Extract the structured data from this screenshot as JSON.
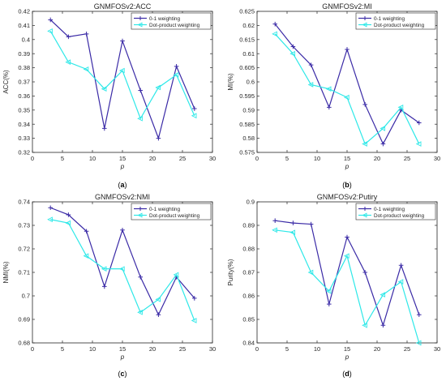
{
  "colors": {
    "series1": "#3a2aa6",
    "series2": "#2ee8e8",
    "axis": "#262626",
    "text": "#262626"
  },
  "chart_data": [
    {
      "type": "line",
      "panel_label": "(a)",
      "title": "GNMFOSv2:ACC",
      "xlabel": "p",
      "ylabel": "ACC(%)",
      "xlim": [
        0,
        30
      ],
      "ylim": [
        0.32,
        0.42
      ],
      "xticks": [
        0,
        5,
        10,
        15,
        20,
        25,
        30
      ],
      "xtick_labels": [
        "0",
        "5",
        "10",
        "15",
        "20",
        "25",
        "30"
      ],
      "yticks": [
        0.32,
        0.33,
        0.34,
        0.35,
        0.36,
        0.37,
        0.38,
        0.39,
        0.4,
        0.41,
        0.42
      ],
      "ytick_labels": [
        "0.32",
        "0.33",
        "0.34",
        "0.35",
        "0.36",
        "0.37",
        "0.38",
        "0.39",
        "0.4",
        "0.41",
        "0.42"
      ],
      "legend": "top-right",
      "grid": false,
      "x": [
        3,
        6,
        9,
        12,
        15,
        18,
        21,
        24,
        27
      ],
      "series": [
        {
          "name": "0-1 weighting",
          "marker": "plus",
          "values": [
            0.414,
            0.402,
            0.404,
            0.337,
            0.399,
            0.364,
            0.33,
            0.381,
            0.351
          ]
        },
        {
          "name": "Dot-product weighting",
          "marker": "triangle",
          "values": [
            0.406,
            0.384,
            0.379,
            0.365,
            0.378,
            0.344,
            0.366,
            0.375,
            0.346
          ]
        }
      ]
    },
    {
      "type": "line",
      "panel_label": "(b)",
      "title": "GNMFOSv2:MI",
      "xlabel": "p",
      "ylabel": "MI(%)",
      "xlim": [
        0,
        30
      ],
      "ylim": [
        0.575,
        0.625
      ],
      "xticks": [
        0,
        5,
        10,
        15,
        20,
        25,
        30
      ],
      "xtick_labels": [
        "0",
        "5",
        "10",
        "15",
        "20",
        "25",
        "30"
      ],
      "yticks": [
        0.575,
        0.58,
        0.585,
        0.59,
        0.595,
        0.6,
        0.605,
        0.61,
        0.615,
        0.62,
        0.625
      ],
      "ytick_labels": [
        "0.575",
        "0.58",
        "0.585",
        "0.59",
        "0.595",
        "0.6",
        "0.605",
        "0.61",
        "0.615",
        "0.62",
        "0.625"
      ],
      "legend": "top-right",
      "grid": false,
      "x": [
        3,
        6,
        9,
        12,
        15,
        18,
        21,
        24,
        27
      ],
      "series": [
        {
          "name": "0-1 weighting",
          "marker": "plus",
          "values": [
            0.6205,
            0.6125,
            0.606,
            0.591,
            0.6115,
            0.592,
            0.578,
            0.59,
            0.5855
          ]
        },
        {
          "name": "Dot-product weighting",
          "marker": "triangle",
          "values": [
            0.617,
            0.61,
            0.599,
            0.5975,
            0.5945,
            0.578,
            0.5835,
            0.591,
            0.578
          ]
        }
      ]
    },
    {
      "type": "line",
      "panel_label": "(c)",
      "title": "GNMFOSv2:NMI",
      "xlabel": "p",
      "ylabel": "NMI(%)",
      "xlim": [
        0,
        30
      ],
      "ylim": [
        0.68,
        0.74
      ],
      "xticks": [
        0,
        5,
        10,
        15,
        20,
        25,
        30
      ],
      "xtick_labels": [
        "0",
        "5",
        "10",
        "15",
        "20",
        "25",
        "30"
      ],
      "yticks": [
        0.68,
        0.69,
        0.7,
        0.71,
        0.72,
        0.73,
        0.74
      ],
      "ytick_labels": [
        "0.68",
        "0.69",
        "0.7",
        "0.71",
        "0.72",
        "0.73",
        "0.74"
      ],
      "legend": "top-right",
      "grid": false,
      "x": [
        3,
        6,
        9,
        12,
        15,
        18,
        21,
        24,
        27
      ],
      "series": [
        {
          "name": "0-1 weighting",
          "marker": "plus",
          "values": [
            0.7375,
            0.7345,
            0.7275,
            0.704,
            0.728,
            0.708,
            0.692,
            0.708,
            0.699
          ]
        },
        {
          "name": "Dot-product weighting",
          "marker": "triangle",
          "values": [
            0.7325,
            0.731,
            0.717,
            0.7115,
            0.7115,
            0.693,
            0.6985,
            0.709,
            0.6895
          ]
        }
      ]
    },
    {
      "type": "line",
      "panel_label": "(d)",
      "title": "GNMFOSv2:Putiry",
      "xlabel": "p",
      "ylabel": "Purity(%)",
      "xlim": [
        0,
        30
      ],
      "ylim": [
        0.84,
        0.9
      ],
      "xticks": [
        0,
        5,
        10,
        15,
        20,
        25,
        30
      ],
      "xtick_labels": [
        "0",
        "5",
        "10",
        "15",
        "20",
        "25",
        "30"
      ],
      "yticks": [
        0.84,
        0.85,
        0.86,
        0.87,
        0.88,
        0.89,
        0.9
      ],
      "ytick_labels": [
        "0.84",
        "0.85",
        "0.86",
        "0.87",
        "0.88",
        "0.89",
        "0.9"
      ],
      "legend": "top-right",
      "grid": false,
      "x": [
        3,
        6,
        9,
        12,
        15,
        18,
        21,
        24,
        27
      ],
      "series": [
        {
          "name": "0-1 weighting",
          "marker": "plus",
          "values": [
            0.892,
            0.891,
            0.8905,
            0.8565,
            0.885,
            0.87,
            0.8475,
            0.873,
            0.852
          ]
        },
        {
          "name": "Dot-product weighting",
          "marker": "triangle",
          "values": [
            0.888,
            0.887,
            0.87,
            0.862,
            0.877,
            0.8475,
            0.8605,
            0.866,
            0.84
          ]
        }
      ]
    }
  ]
}
